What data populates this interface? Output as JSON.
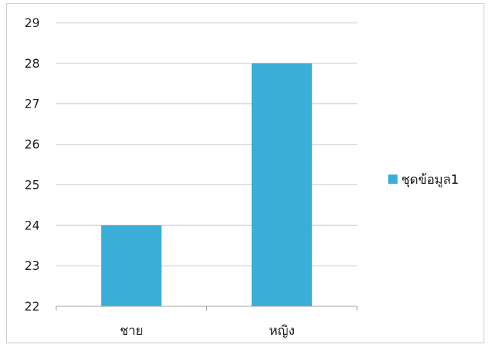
{
  "chart_data": {
    "type": "bar",
    "categories": [
      "ชาย",
      "หญิง"
    ],
    "series": [
      {
        "name": "ชุดข้อมูล1",
        "values": [
          24,
          28
        ],
        "color": "#3aaed8"
      }
    ],
    "title": "",
    "xlabel": "",
    "ylabel": "",
    "ylim": [
      22,
      29
    ],
    "yticks": [
      22,
      23,
      24,
      25,
      26,
      27,
      28,
      29
    ],
    "grid": true,
    "legend": "right",
    "colors": {
      "bar": "#3aaed8",
      "grid": "#c8c8c8",
      "axis": "#a0a0a0"
    }
  }
}
